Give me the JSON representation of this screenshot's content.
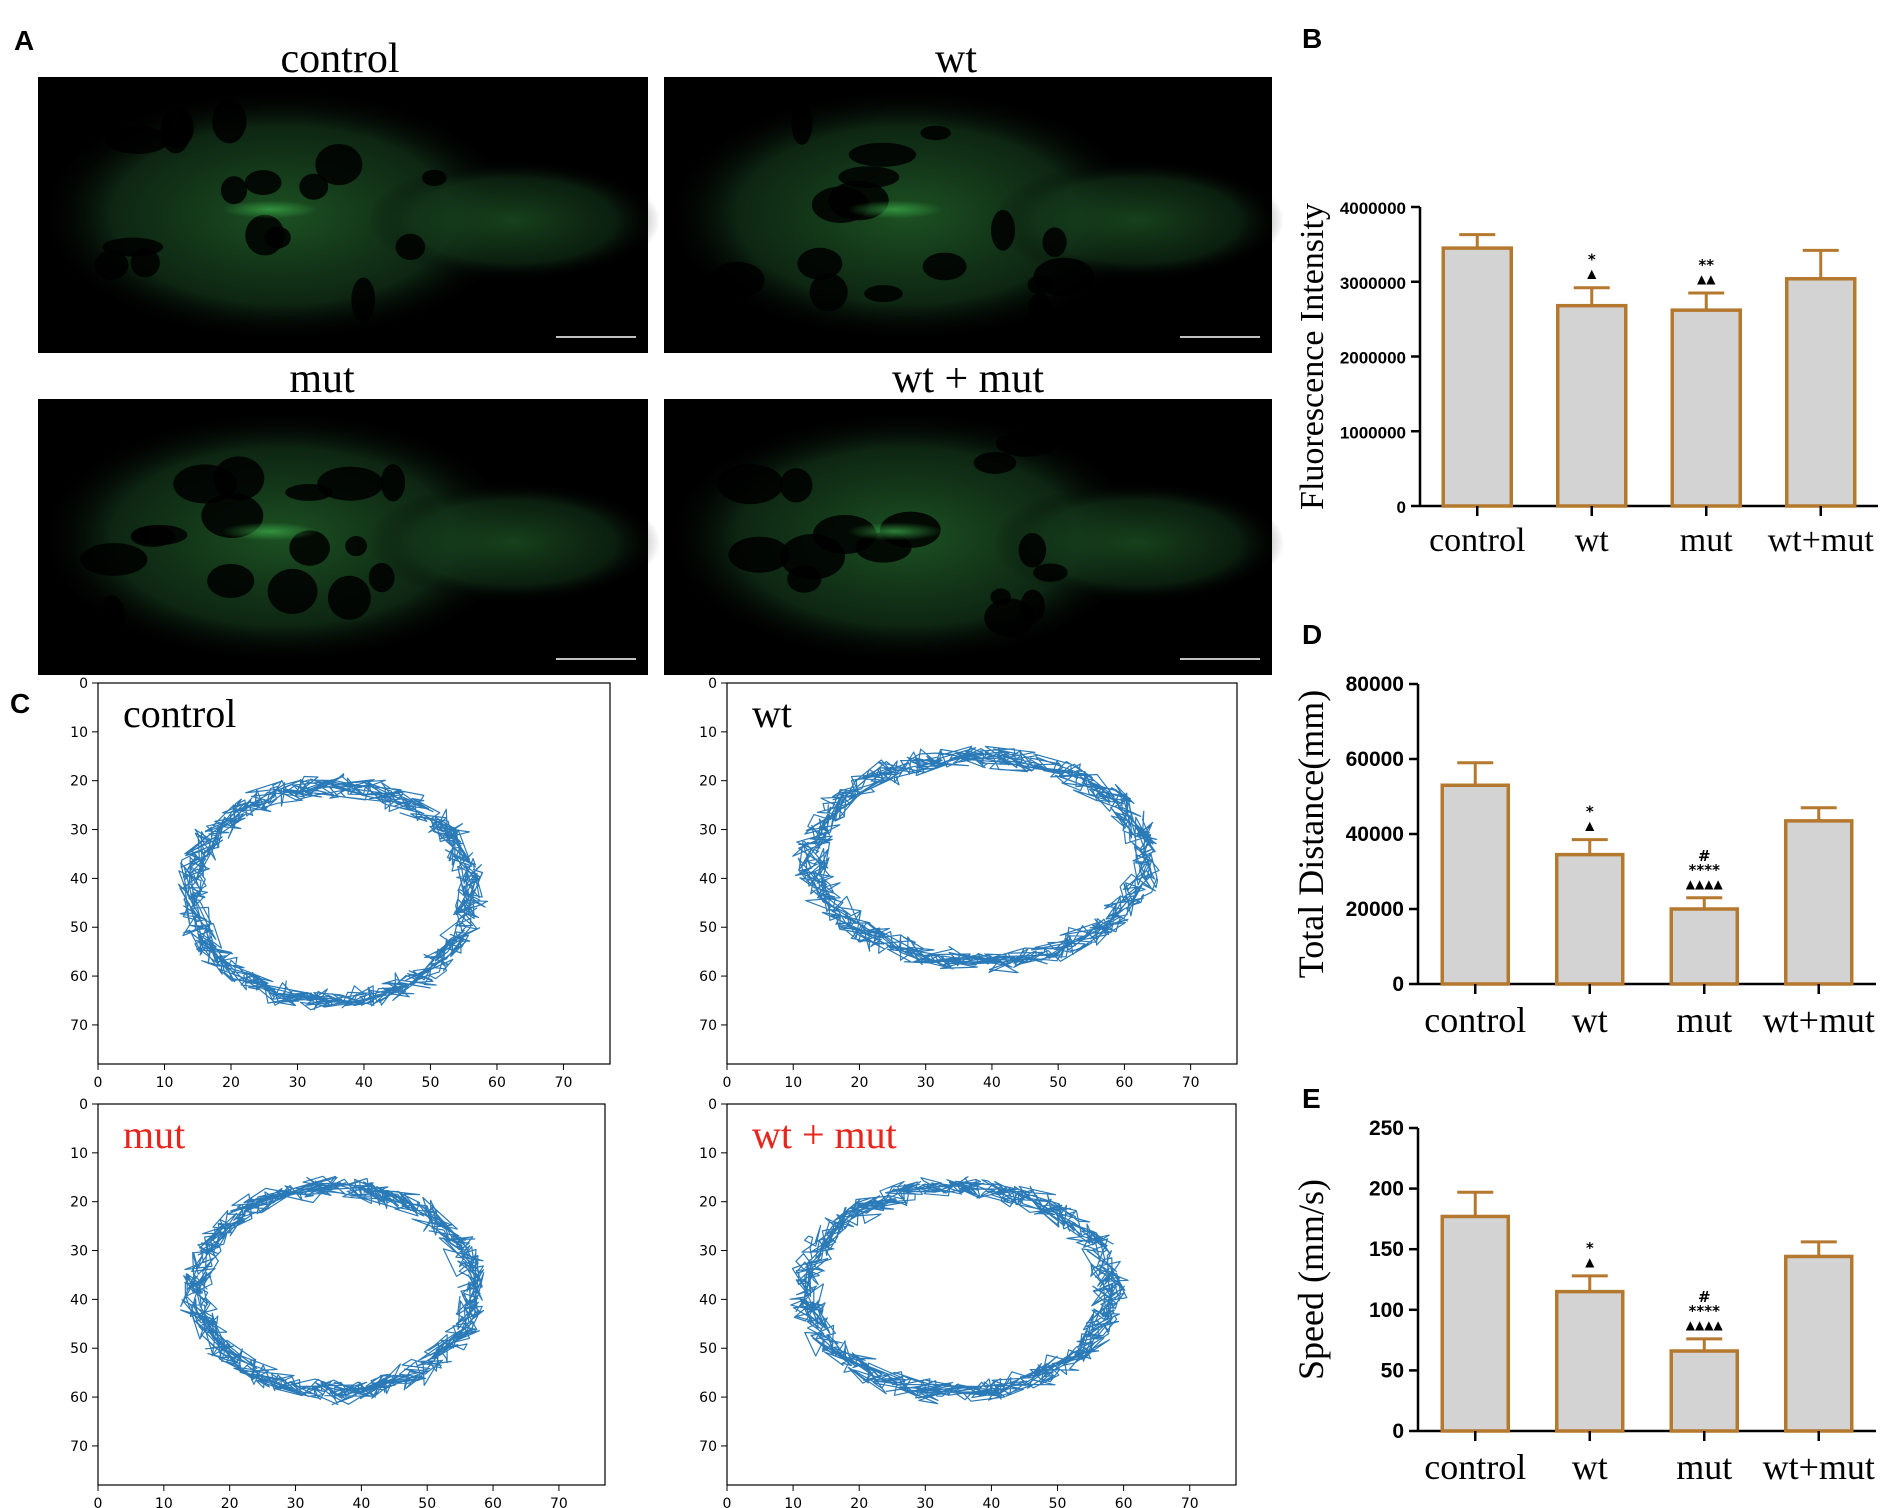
{
  "panel_letters": [
    "A",
    "B",
    "C",
    "D",
    "E"
  ],
  "images": {
    "titles": [
      "control",
      "wt",
      "mut",
      "wt + mut"
    ],
    "background_color": "#000000",
    "fluorescence_color": "#2e8b3a"
  },
  "colors": {
    "bar_fill": "#d3d3d3",
    "bar_stroke": "#b5782f",
    "track_line": "#2a7ab8",
    "mut_label": "#e8241c",
    "axis": "#000000"
  },
  "trajectory_plots": {
    "titles": [
      "control",
      "wt",
      "mut",
      "wt + mut"
    ],
    "title_colors": [
      "#000000",
      "#000000",
      "#e8241c",
      "#e8241c"
    ],
    "x_ticks": [
      "0",
      "10",
      "20",
      "30",
      "40",
      "50",
      "60",
      "70"
    ],
    "y_ticks": [
      "0",
      "10",
      "20",
      "30",
      "40",
      "50",
      "60",
      "70"
    ],
    "xlim": [
      0,
      77
    ],
    "ylim": [
      0,
      78
    ],
    "ellipses": [
      {
        "cx": 35,
        "cy": 43,
        "rx": 21,
        "ry": 22
      },
      {
        "cx": 38,
        "cy": 36,
        "rx": 25,
        "ry": 21
      },
      {
        "cx": 36,
        "cy": 38,
        "rx": 21,
        "ry": 21
      },
      {
        "cx": 35,
        "cy": 38,
        "rx": 23,
        "ry": 21
      }
    ]
  },
  "chart_data": [
    {
      "type": "bar",
      "panel": "B",
      "categories": [
        "control",
        "wt",
        "mut",
        "wt+mut"
      ],
      "values": [
        3450000,
        2680000,
        2620000,
        3040000
      ],
      "errors": [
        180000,
        240000,
        230000,
        380000
      ],
      "annotations": [
        [],
        [
          "*",
          "▲"
        ],
        [
          "**",
          "▲▲"
        ],
        []
      ],
      "ylabel": "Fluorescence Intensity",
      "ylim": [
        0,
        4000000
      ],
      "yticks": [
        "0",
        "1000000",
        "2000000",
        "3000000",
        "4000000"
      ],
      "ytick_values": [
        0,
        1000000,
        2000000,
        3000000,
        4000000
      ]
    },
    {
      "type": "bar",
      "panel": "D",
      "categories": [
        "control",
        "wt",
        "mut",
        "wt+mut"
      ],
      "values": [
        53000,
        34500,
        20000,
        43500
      ],
      "errors": [
        6000,
        4000,
        3000,
        3500
      ],
      "annotations": [
        [],
        [
          "*",
          "▲"
        ],
        [
          "#",
          "****",
          "▲▲▲▲"
        ],
        []
      ],
      "ylabel": "Total Distance(mm)",
      "ylim": [
        0,
        80000
      ],
      "yticks": [
        "0",
        "20000",
        "40000",
        "60000",
        "80000"
      ],
      "ytick_values": [
        0,
        20000,
        40000,
        60000,
        80000
      ]
    },
    {
      "type": "bar",
      "panel": "E",
      "categories": [
        "control",
        "wt",
        "mut",
        "wt+mut"
      ],
      "values": [
        177,
        115,
        66,
        144
      ],
      "errors": [
        20,
        13,
        10,
        12
      ],
      "annotations": [
        [],
        [
          "*",
          "▲"
        ],
        [
          "#",
          "****",
          "▲▲▲▲"
        ],
        []
      ],
      "ylabel": "Speed (mm/s)",
      "ylim": [
        0,
        250
      ],
      "yticks": [
        "0",
        "50",
        "100",
        "150",
        "200",
        "250"
      ],
      "ytick_values": [
        0,
        50,
        100,
        150,
        200,
        250
      ]
    }
  ]
}
